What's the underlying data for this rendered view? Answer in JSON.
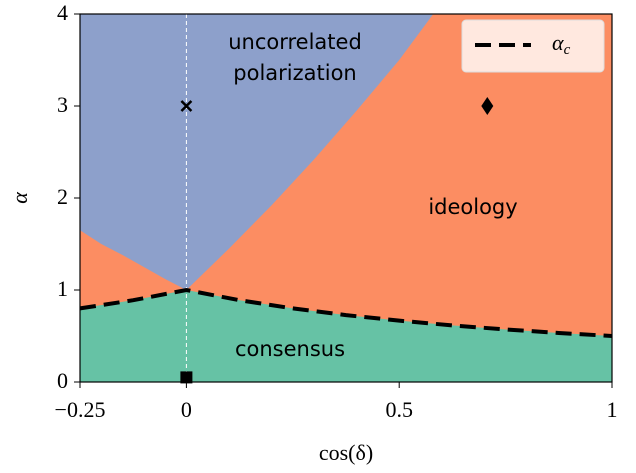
{
  "chart_data": {
    "type": "phase",
    "xlabel": "cos(δ)",
    "ylabel": "α",
    "xlim": [
      -0.25,
      1
    ],
    "ylim": [
      0,
      4
    ],
    "xticks": [
      {
        "value": -0.25,
        "label": "−0.25"
      },
      0,
      0.5,
      1
    ],
    "yticks": [
      0,
      1,
      2,
      3,
      4
    ],
    "regions": [
      {
        "name": "ideology",
        "color": "#fc8d62"
      },
      {
        "name": "uncorrelated\npolarization",
        "color": "#8da0cb"
      },
      {
        "name": "consensus",
        "color": "#66c2a5"
      }
    ],
    "phase_boundary": {
      "x": [
        -0.25,
        -0.2,
        -0.15,
        -0.1,
        -0.05,
        0,
        0.1,
        0.2,
        0.3,
        0.4,
        0.5,
        0.58
      ],
      "values": [
        1.65,
        1.5,
        1.38,
        1.25,
        1.12,
        1,
        1.45,
        1.92,
        2.42,
        2.95,
        3.5,
        4
      ]
    },
    "series": [
      {
        "name": "αc",
        "color": "#000000",
        "x": [
          -0.25,
          -0.125,
          0,
          0.125,
          0.25,
          0.375,
          0.5,
          0.625,
          0.75,
          0.875,
          1
        ],
        "values": [
          0.8,
          0.889,
          1,
          0.889,
          0.8,
          0.727,
          0.667,
          0.615,
          0.571,
          0.533,
          0.5
        ]
      }
    ],
    "markers": [
      {
        "symbol": "x",
        "x": 0,
        "y": 3
      },
      {
        "symbol": "diamond",
        "x": 0.707,
        "y": 3
      },
      {
        "symbol": "square",
        "x": 0,
        "y": 0.05
      }
    ],
    "legend": "upper right"
  }
}
